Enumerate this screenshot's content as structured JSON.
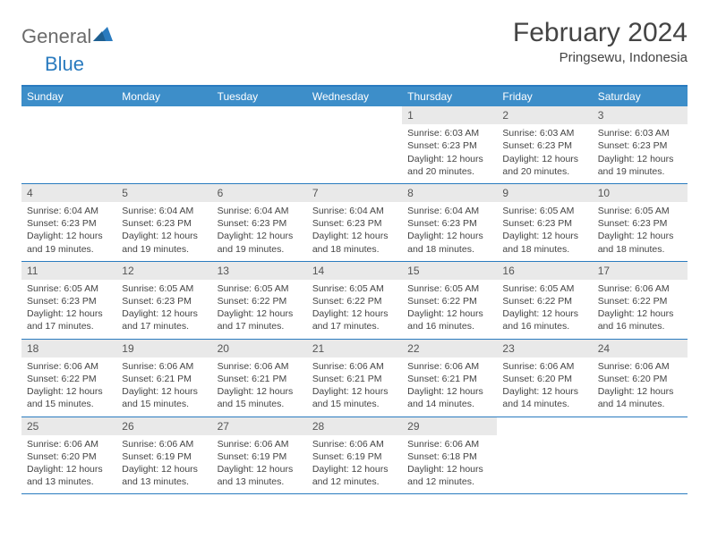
{
  "logo": {
    "text1": "General",
    "text2": "Blue"
  },
  "title": "February 2024",
  "location": "Pringsewu, Indonesia",
  "colors": {
    "header_bg": "#3d8ec9",
    "border": "#2a7bbf",
    "daynum_bg": "#e9e9e9",
    "text": "#444444"
  },
  "day_headers": [
    "Sunday",
    "Monday",
    "Tuesday",
    "Wednesday",
    "Thursday",
    "Friday",
    "Saturday"
  ],
  "weeks": [
    [
      {
        "num": "",
        "sunrise": "",
        "sunset": "",
        "daylight": ""
      },
      {
        "num": "",
        "sunrise": "",
        "sunset": "",
        "daylight": ""
      },
      {
        "num": "",
        "sunrise": "",
        "sunset": "",
        "daylight": ""
      },
      {
        "num": "",
        "sunrise": "",
        "sunset": "",
        "daylight": ""
      },
      {
        "num": "1",
        "sunrise": "Sunrise: 6:03 AM",
        "sunset": "Sunset: 6:23 PM",
        "daylight": "Daylight: 12 hours and 20 minutes."
      },
      {
        "num": "2",
        "sunrise": "Sunrise: 6:03 AM",
        "sunset": "Sunset: 6:23 PM",
        "daylight": "Daylight: 12 hours and 20 minutes."
      },
      {
        "num": "3",
        "sunrise": "Sunrise: 6:03 AM",
        "sunset": "Sunset: 6:23 PM",
        "daylight": "Daylight: 12 hours and 19 minutes."
      }
    ],
    [
      {
        "num": "4",
        "sunrise": "Sunrise: 6:04 AM",
        "sunset": "Sunset: 6:23 PM",
        "daylight": "Daylight: 12 hours and 19 minutes."
      },
      {
        "num": "5",
        "sunrise": "Sunrise: 6:04 AM",
        "sunset": "Sunset: 6:23 PM",
        "daylight": "Daylight: 12 hours and 19 minutes."
      },
      {
        "num": "6",
        "sunrise": "Sunrise: 6:04 AM",
        "sunset": "Sunset: 6:23 PM",
        "daylight": "Daylight: 12 hours and 19 minutes."
      },
      {
        "num": "7",
        "sunrise": "Sunrise: 6:04 AM",
        "sunset": "Sunset: 6:23 PM",
        "daylight": "Daylight: 12 hours and 18 minutes."
      },
      {
        "num": "8",
        "sunrise": "Sunrise: 6:04 AM",
        "sunset": "Sunset: 6:23 PM",
        "daylight": "Daylight: 12 hours and 18 minutes."
      },
      {
        "num": "9",
        "sunrise": "Sunrise: 6:05 AM",
        "sunset": "Sunset: 6:23 PM",
        "daylight": "Daylight: 12 hours and 18 minutes."
      },
      {
        "num": "10",
        "sunrise": "Sunrise: 6:05 AM",
        "sunset": "Sunset: 6:23 PM",
        "daylight": "Daylight: 12 hours and 18 minutes."
      }
    ],
    [
      {
        "num": "11",
        "sunrise": "Sunrise: 6:05 AM",
        "sunset": "Sunset: 6:23 PM",
        "daylight": "Daylight: 12 hours and 17 minutes."
      },
      {
        "num": "12",
        "sunrise": "Sunrise: 6:05 AM",
        "sunset": "Sunset: 6:23 PM",
        "daylight": "Daylight: 12 hours and 17 minutes."
      },
      {
        "num": "13",
        "sunrise": "Sunrise: 6:05 AM",
        "sunset": "Sunset: 6:22 PM",
        "daylight": "Daylight: 12 hours and 17 minutes."
      },
      {
        "num": "14",
        "sunrise": "Sunrise: 6:05 AM",
        "sunset": "Sunset: 6:22 PM",
        "daylight": "Daylight: 12 hours and 17 minutes."
      },
      {
        "num": "15",
        "sunrise": "Sunrise: 6:05 AM",
        "sunset": "Sunset: 6:22 PM",
        "daylight": "Daylight: 12 hours and 16 minutes."
      },
      {
        "num": "16",
        "sunrise": "Sunrise: 6:05 AM",
        "sunset": "Sunset: 6:22 PM",
        "daylight": "Daylight: 12 hours and 16 minutes."
      },
      {
        "num": "17",
        "sunrise": "Sunrise: 6:06 AM",
        "sunset": "Sunset: 6:22 PM",
        "daylight": "Daylight: 12 hours and 16 minutes."
      }
    ],
    [
      {
        "num": "18",
        "sunrise": "Sunrise: 6:06 AM",
        "sunset": "Sunset: 6:22 PM",
        "daylight": "Daylight: 12 hours and 15 minutes."
      },
      {
        "num": "19",
        "sunrise": "Sunrise: 6:06 AM",
        "sunset": "Sunset: 6:21 PM",
        "daylight": "Daylight: 12 hours and 15 minutes."
      },
      {
        "num": "20",
        "sunrise": "Sunrise: 6:06 AM",
        "sunset": "Sunset: 6:21 PM",
        "daylight": "Daylight: 12 hours and 15 minutes."
      },
      {
        "num": "21",
        "sunrise": "Sunrise: 6:06 AM",
        "sunset": "Sunset: 6:21 PM",
        "daylight": "Daylight: 12 hours and 15 minutes."
      },
      {
        "num": "22",
        "sunrise": "Sunrise: 6:06 AM",
        "sunset": "Sunset: 6:21 PM",
        "daylight": "Daylight: 12 hours and 14 minutes."
      },
      {
        "num": "23",
        "sunrise": "Sunrise: 6:06 AM",
        "sunset": "Sunset: 6:20 PM",
        "daylight": "Daylight: 12 hours and 14 minutes."
      },
      {
        "num": "24",
        "sunrise": "Sunrise: 6:06 AM",
        "sunset": "Sunset: 6:20 PM",
        "daylight": "Daylight: 12 hours and 14 minutes."
      }
    ],
    [
      {
        "num": "25",
        "sunrise": "Sunrise: 6:06 AM",
        "sunset": "Sunset: 6:20 PM",
        "daylight": "Daylight: 12 hours and 13 minutes."
      },
      {
        "num": "26",
        "sunrise": "Sunrise: 6:06 AM",
        "sunset": "Sunset: 6:19 PM",
        "daylight": "Daylight: 12 hours and 13 minutes."
      },
      {
        "num": "27",
        "sunrise": "Sunrise: 6:06 AM",
        "sunset": "Sunset: 6:19 PM",
        "daylight": "Daylight: 12 hours and 13 minutes."
      },
      {
        "num": "28",
        "sunrise": "Sunrise: 6:06 AM",
        "sunset": "Sunset: 6:19 PM",
        "daylight": "Daylight: 12 hours and 12 minutes."
      },
      {
        "num": "29",
        "sunrise": "Sunrise: 6:06 AM",
        "sunset": "Sunset: 6:18 PM",
        "daylight": "Daylight: 12 hours and 12 minutes."
      },
      {
        "num": "",
        "sunrise": "",
        "sunset": "",
        "daylight": ""
      },
      {
        "num": "",
        "sunrise": "",
        "sunset": "",
        "daylight": ""
      }
    ]
  ]
}
